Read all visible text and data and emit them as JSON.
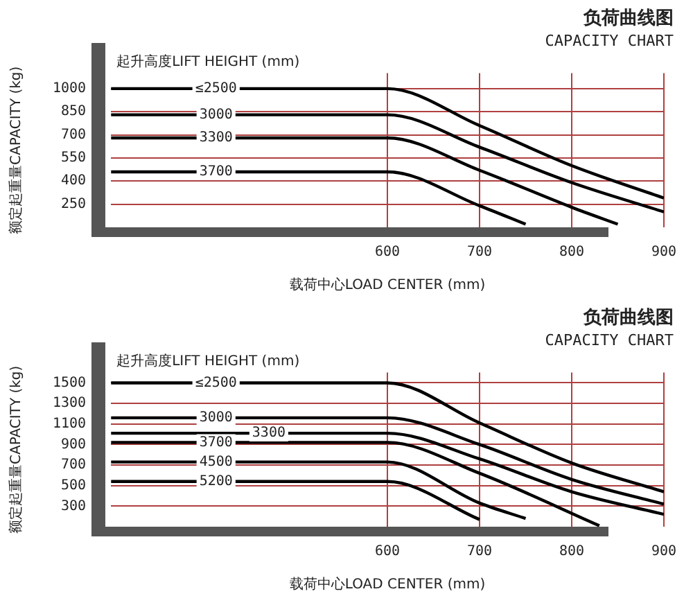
{
  "chart_data": [
    {
      "type": "line",
      "title": "负荷曲线图",
      "subtitle": "CAPACITY CHART",
      "xlabel": "载荷中心LOAD CENTER (mm)",
      "ylabel": "额定起重量CAPACITY (kg)",
      "annotations": [
        "起升高度LIFT HEIGHT (mm)"
      ],
      "xlim": [
        300,
        900
      ],
      "xticks": [
        600,
        700,
        800,
        900
      ],
      "ylim": [
        100,
        1100
      ],
      "yticks": [
        250,
        400,
        550,
        700,
        850,
        1000
      ],
      "grid": true,
      "legend": false,
      "marker": "none",
      "line_style": "solid",
      "series": [
        {
          "name": "≤2500",
          "color": "#000000",
          "x": [
            300,
            600,
            700,
            800,
            900
          ],
          "values": [
            1000,
            1000,
            760,
            500,
            290
          ]
        },
        {
          "name": "3000",
          "color": "#000000",
          "x": [
            300,
            600,
            700,
            800,
            900
          ],
          "values": [
            830,
            830,
            620,
            390,
            200
          ]
        },
        {
          "name": "3300",
          "color": "#000000",
          "x": [
            300,
            600,
            700,
            800,
            850
          ],
          "values": [
            680,
            680,
            470,
            230,
            120
          ]
        },
        {
          "name": "3700",
          "color": "#000000",
          "x": [
            300,
            600,
            700,
            750
          ],
          "values": [
            460,
            460,
            240,
            120
          ]
        }
      ]
    },
    {
      "type": "line",
      "title": "负荷曲线图",
      "subtitle": "CAPACITY CHART",
      "xlabel": "载荷中心LOAD CENTER (mm)",
      "ylabel": "额定起重量CAPACITY (kg)",
      "annotations": [
        "起升高度LIFT HEIGHT (mm)"
      ],
      "xlim": [
        300,
        900
      ],
      "xticks": [
        600,
        700,
        800,
        900
      ],
      "ylim": [
        100,
        1600
      ],
      "yticks": [
        300,
        500,
        700,
        900,
        1100,
        1300,
        1500
      ],
      "grid": true,
      "legend": false,
      "marker": "none",
      "line_style": "solid",
      "series": [
        {
          "name": "≤2500",
          "color": "#000000",
          "x": [
            300,
            600,
            700,
            800,
            900
          ],
          "values": [
            1500,
            1500,
            1110,
            720,
            440
          ]
        },
        {
          "name": "3000",
          "color": "#000000",
          "x": [
            300,
            600,
            700,
            800,
            900
          ],
          "values": [
            1160,
            1160,
            900,
            560,
            320
          ]
        },
        {
          "name": "3300",
          "color": "#000000",
          "x": [
            300,
            600,
            700,
            800,
            900
          ],
          "values": [
            1010,
            1010,
            760,
            440,
            220
          ]
        },
        {
          "name": "3700",
          "color": "#000000",
          "x": [
            300,
            600,
            700,
            830
          ],
          "values": [
            920,
            920,
            620,
            110
          ]
        },
        {
          "name": "4500",
          "color": "#000000",
          "x": [
            300,
            600,
            700,
            750
          ],
          "values": [
            730,
            730,
            330,
            180
          ]
        },
        {
          "name": "5200",
          "color": "#000000",
          "x": [
            300,
            600,
            700
          ],
          "values": [
            540,
            540,
            170
          ]
        }
      ]
    }
  ]
}
